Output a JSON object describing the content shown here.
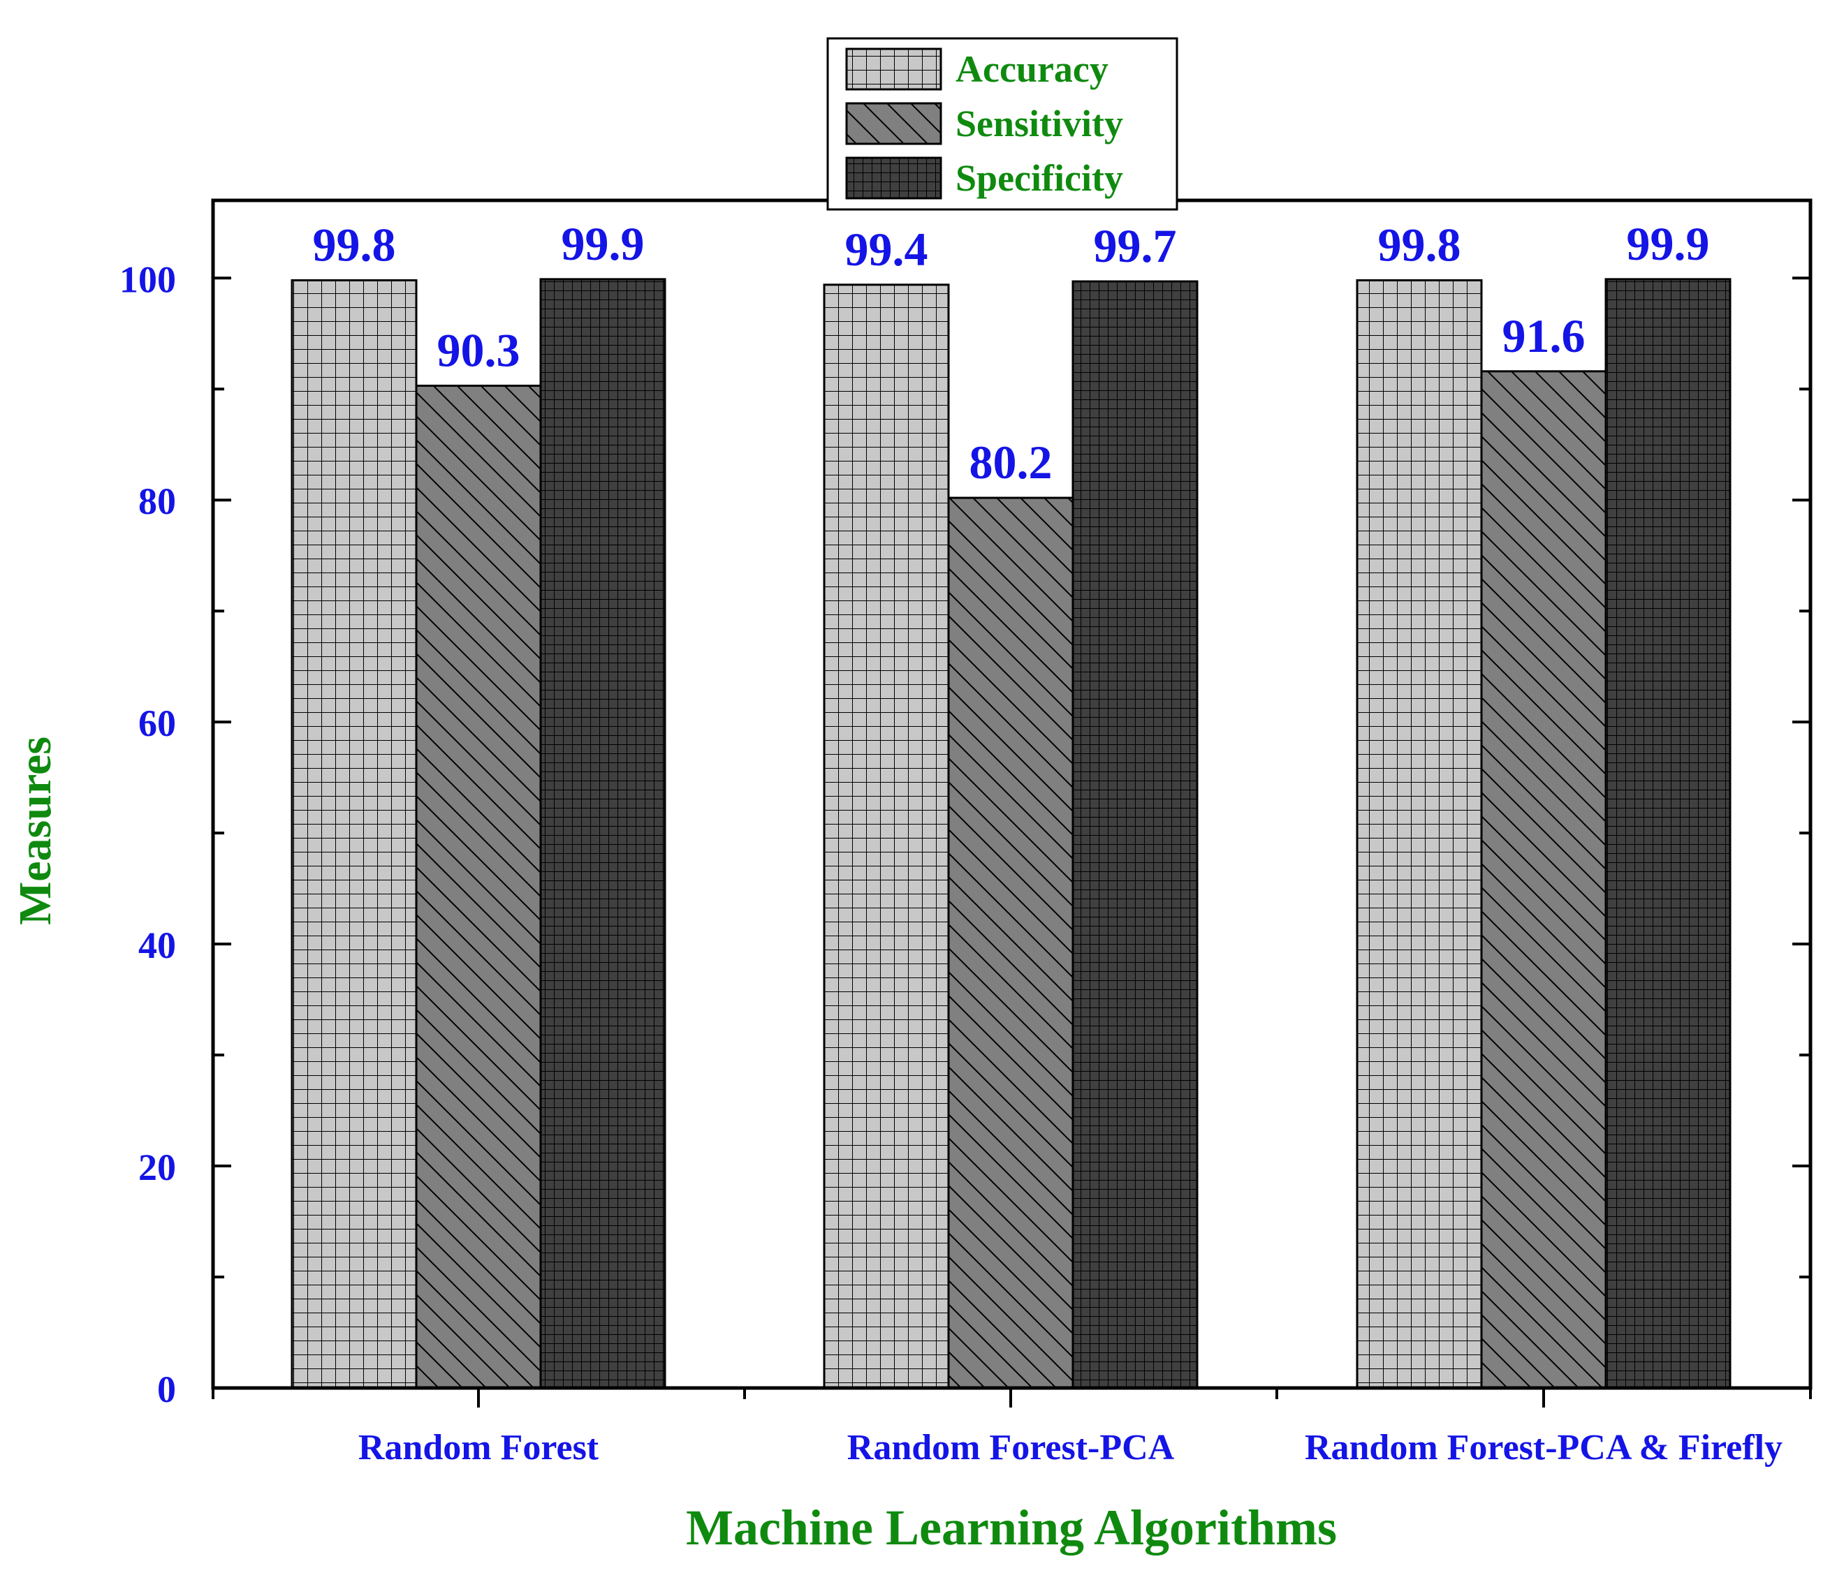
{
  "chart_data": {
    "type": "bar",
    "title": "",
    "xlabel": "Machine Learning Algorithms",
    "ylabel": "Measures",
    "categories": [
      "Random Forest",
      "Random Forest-PCA",
      "Random Forest-PCA  & Firefly"
    ],
    "series": [
      {
        "name": "Accuracy",
        "values": [
          99.8,
          99.4,
          99.8
        ],
        "color": "#c8c8c8",
        "pattern": "grid"
      },
      {
        "name": "Sensitivity",
        "values": [
          90.3,
          80.2,
          91.6
        ],
        "color": "#808080",
        "pattern": "diagonal"
      },
      {
        "name": "Specificity",
        "values": [
          99.9,
          99.7,
          99.9
        ],
        "color": "#404040",
        "pattern": "fine-grid"
      }
    ],
    "data_labels": [
      [
        "99.8",
        "90.3",
        "99.9"
      ],
      [
        "99.4",
        "80.2",
        "99.7"
      ],
      [
        "99.8",
        "91.6",
        "99.9"
      ]
    ],
    "yticks": [
      0,
      20,
      40,
      60,
      80,
      100
    ],
    "ylim": [
      0,
      107
    ],
    "grid": false,
    "legend_position": "top-center",
    "colors": {
      "tick_label": "#1414e6",
      "data_label": "#1414e6",
      "axis_title": "#0f8a0f",
      "legend_text": "#0f8a0f",
      "axis": "#000000"
    }
  }
}
